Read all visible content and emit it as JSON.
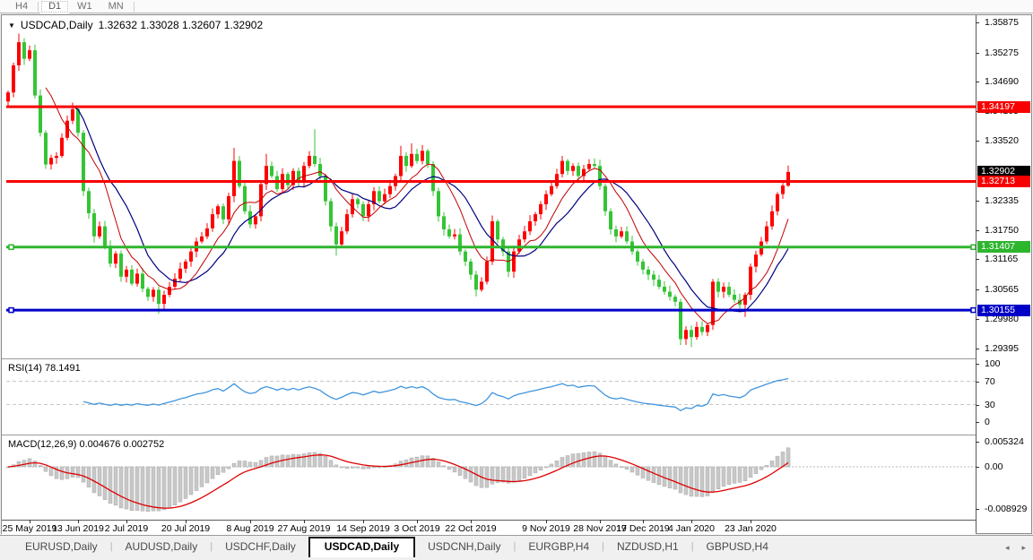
{
  "toolbar": {
    "timeframes": [
      {
        "label": "H4",
        "active": false
      },
      {
        "label": "D1",
        "active": true
      },
      {
        "label": "W1",
        "active": false
      },
      {
        "label": "MN",
        "active": false
      }
    ]
  },
  "chart": {
    "symbol_period": "USDCAD,Daily",
    "ohlc_text": "1.32632 1.33028 1.32607 1.32902",
    "collapse_icon": "down-triangle"
  },
  "price_axis": {
    "ticks": [
      {
        "v": 1.35875,
        "label": "1.35875"
      },
      {
        "v": 1.35275,
        "label": "1.35275"
      },
      {
        "v": 1.3469,
        "label": "1.34690"
      },
      {
        "v": 1.34105,
        "label": "1.34105"
      },
      {
        "v": 1.3352,
        "label": "1.33520"
      },
      {
        "v": 1.32335,
        "label": "1.32335"
      },
      {
        "v": 1.3175,
        "label": "1.31750"
      },
      {
        "v": 1.31165,
        "label": "1.31165"
      },
      {
        "v": 1.30565,
        "label": "1.30565"
      },
      {
        "v": 1.2998,
        "label": "1.29980"
      },
      {
        "v": 1.29395,
        "label": "1.29395"
      }
    ],
    "price_labels": [
      {
        "v": 1.34197,
        "label": "1.34197",
        "bg": "#f80000"
      },
      {
        "v": 1.32902,
        "label": "1.32902",
        "bg": "#000000"
      },
      {
        "v": 1.32713,
        "label": "1.32713",
        "bg": "#f80000"
      },
      {
        "v": 1.31407,
        "label": "1.31407",
        "bg": "#2eb52e"
      },
      {
        "v": 1.30155,
        "label": "1.30155",
        "bg": "#0000c8"
      }
    ]
  },
  "chart_data": {
    "type": "candlestick",
    "title": "USDCAD,Daily",
    "current": {
      "open": 1.32632,
      "high": 1.33028,
      "low": 1.32607,
      "close": 1.32902
    },
    "ylim": [
      1.2923,
      1.3598
    ],
    "grid": false,
    "colors": {
      "bull_candle": "#ff0000",
      "bear_candle": "#35c435",
      "ma_fast": "#c00000",
      "ma_slow": "#000080",
      "rsi_line": "#4095dd",
      "rsi_dash": "#c8c8c8",
      "macd_hist": "#c8c8c8",
      "macd_hist_border": "#aaaaaa",
      "macd_signal": "#e00000"
    },
    "hlines": [
      {
        "v": 1.34197,
        "color": "#f80000",
        "width": 3,
        "handles": false
      },
      {
        "v": 1.32713,
        "color": "#f80000",
        "width": 3,
        "handles": false
      },
      {
        "v": 1.31407,
        "color": "#2eb52e",
        "width": 3,
        "handles": true
      },
      {
        "v": 1.30155,
        "color": "#0000c8",
        "width": 3,
        "handles": true
      }
    ],
    "closes": [
      1.3448,
      1.3502,
      1.3548,
      1.3515,
      1.3532,
      1.3442,
      1.3368,
      1.3305,
      1.3318,
      1.3322,
      1.3358,
      1.3392,
      1.3415,
      1.3368,
      1.3252,
      1.3208,
      1.3162,
      1.3182,
      1.3142,
      1.3108,
      1.3128,
      1.3082,
      1.3096,
      1.3068,
      1.3088,
      1.3058,
      1.3042,
      1.3056,
      1.3028,
      1.3046,
      1.3062,
      1.3078,
      1.3098,
      1.3112,
      1.3132,
      1.3152,
      1.3162,
      1.3178,
      1.3206,
      1.3222,
      1.3196,
      1.3242,
      1.3312,
      1.3262,
      1.3212,
      1.3186,
      1.3202,
      1.3266,
      1.3302,
      1.3282,
      1.3256,
      1.3286,
      1.3264,
      1.3292,
      1.3272,
      1.3302,
      1.3322,
      1.3306,
      1.3282,
      1.3232,
      1.3182,
      1.3146,
      1.3172,
      1.3206,
      1.3236,
      1.3226,
      1.3202,
      1.3226,
      1.3252,
      1.3232,
      1.3246,
      1.3262,
      1.3282,
      1.3322,
      1.3302,
      1.3326,
      1.3312,
      1.3332,
      1.3306,
      1.3252,
      1.3202,
      1.3176,
      1.3162,
      1.3166,
      1.3132,
      1.3112,
      1.3086,
      1.3056,
      1.3072,
      1.3112,
      1.3192,
      1.3156,
      1.3132,
      1.3092,
      1.3132,
      1.3156,
      1.3172,
      1.3192,
      1.3206,
      1.3226,
      1.3246,
      1.3262,
      1.3286,
      1.3312,
      1.3292,
      1.3302,
      1.3282,
      1.3296,
      1.3306,
      1.3302,
      1.3262,
      1.3212,
      1.3176,
      1.3162,
      1.3172,
      1.3152,
      1.3132,
      1.3112,
      1.3096,
      1.3086,
      1.3076,
      1.3062,
      1.3052,
      1.3042,
      1.3032,
      1.2958,
      1.2976,
      1.2962,
      1.2982,
      1.2972,
      1.2986,
      1.3072,
      1.3052,
      1.3062,
      1.3046,
      1.3036,
      1.3026,
      1.3046,
      1.3102,
      1.3126,
      1.3152,
      1.3182,
      1.3212,
      1.3246,
      1.3263,
      1.32902
    ],
    "wicks": {
      "2": {
        "h": 1.3565
      },
      "12": {
        "h": 1.3428
      },
      "28": {
        "l": 1.3008
      },
      "42": {
        "h": 1.3338
      },
      "48": {
        "h": 1.3326
      },
      "57": {
        "h": 1.3375
      },
      "61": {
        "l": 1.3124
      },
      "73": {
        "h": 1.3342
      },
      "75": {
        "h": 1.3347
      },
      "87": {
        "l": 1.3043
      },
      "103": {
        "h": 1.3322
      },
      "125": {
        "l": 1.2946
      },
      "127": {
        "l": 1.2942
      },
      "137": {
        "l": 1.3002
      },
      "145": {
        "h": 1.33028,
        "l": 1.32607
      }
    },
    "ma_fast_period": 8,
    "ma_slow_period": 13,
    "date_ticks": [
      {
        "label": "25 May 2019",
        "i": 4
      },
      {
        "label": "13 Jun 2019",
        "i": 13
      },
      {
        "label": "2 Jul 2019",
        "i": 22
      },
      {
        "label": "20 Jul 2019",
        "i": 33
      },
      {
        "label": "8 Aug 2019",
        "i": 45
      },
      {
        "label": "27 Aug 2019",
        "i": 55
      },
      {
        "label": "14 Sep 2019",
        "i": 66
      },
      {
        "label": "3 Oct 2019",
        "i": 76
      },
      {
        "label": "22 Oct 2019",
        "i": 86
      },
      {
        "label": "9 Nov 2019",
        "i": 100
      },
      {
        "label": "28 Nov 2019",
        "i": 110
      },
      {
        "label": "17 Dec 2019",
        "i": 118
      },
      {
        "label": "4 Jan 2020",
        "i": 127
      },
      {
        "label": "23 Jan 2020",
        "i": 138
      }
    ],
    "rsi": {
      "label": "RSI(14) 78.1491",
      "period": 14,
      "current": 78.1491,
      "axis_labels": [
        {
          "v": 100,
          "label": "100"
        },
        {
          "v": 70,
          "label": "70"
        },
        {
          "v": 30,
          "label": "30"
        },
        {
          "v": 0,
          "label": "0"
        }
      ],
      "dash_levels": [
        70,
        30
      ]
    },
    "macd": {
      "label": "MACD(12,26,9) 0.004676 0.002752",
      "fast": 12,
      "slow": 26,
      "signal": 9,
      "current_main": 0.004676,
      "current_signal": 0.002752,
      "axis_labels": [
        {
          "v": 0.005324,
          "label": "0.005324"
        },
        {
          "v": 0,
          "label": "0.00"
        },
        {
          "v": -0.008929,
          "label": "-0.008929"
        }
      ]
    }
  },
  "tabbar": {
    "tabs": [
      {
        "label": "EURUSD,Daily",
        "active": false
      },
      {
        "label": "AUDUSD,Daily",
        "active": false
      },
      {
        "label": "USDCHF,Daily",
        "active": false
      },
      {
        "label": "USDCAD,Daily",
        "active": true
      },
      {
        "label": "USDCNH,Daily",
        "active": false
      },
      {
        "label": "EURGBP,H4",
        "active": false
      },
      {
        "label": "NZDUSD,H1",
        "active": false
      },
      {
        "label": "GBPUSD,H4",
        "active": false
      }
    ],
    "scroll_left_icon": "◂",
    "scroll_right_icon": "▸"
  }
}
